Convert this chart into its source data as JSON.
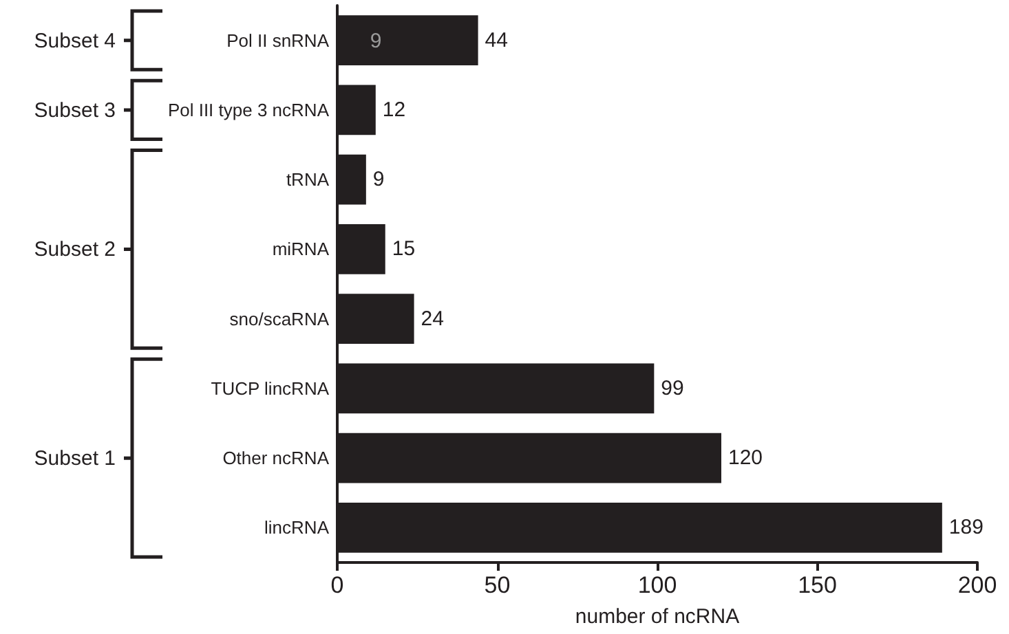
{
  "chart_data": {
    "type": "bar",
    "orientation": "horizontal",
    "xlabel": "number of ncRNA",
    "categories": [
      "Pol II snRNA",
      "Pol III type 3 ncRNA",
      "tRNA",
      "miRNA",
      "sno/scaRNA",
      "TUCP lincRNA",
      "Other ncRNA",
      "lincRNA"
    ],
    "values": [
      44,
      12,
      9,
      15,
      24,
      99,
      120,
      189
    ],
    "color": "#231f20",
    "value_labels": [
      "44",
      "12",
      "9",
      "15",
      "24",
      "99",
      "120",
      "189"
    ],
    "xlim": [
      0,
      200
    ],
    "xticks": [
      0,
      50,
      100,
      150,
      200
    ],
    "grid": false,
    "annotations": [
      {
        "text": "9",
        "x": 9,
        "y": "Pol II snRNA"
      },
      "Subset 4",
      "Subset 3",
      "Subset 2",
      "Subset 1"
    ]
  }
}
